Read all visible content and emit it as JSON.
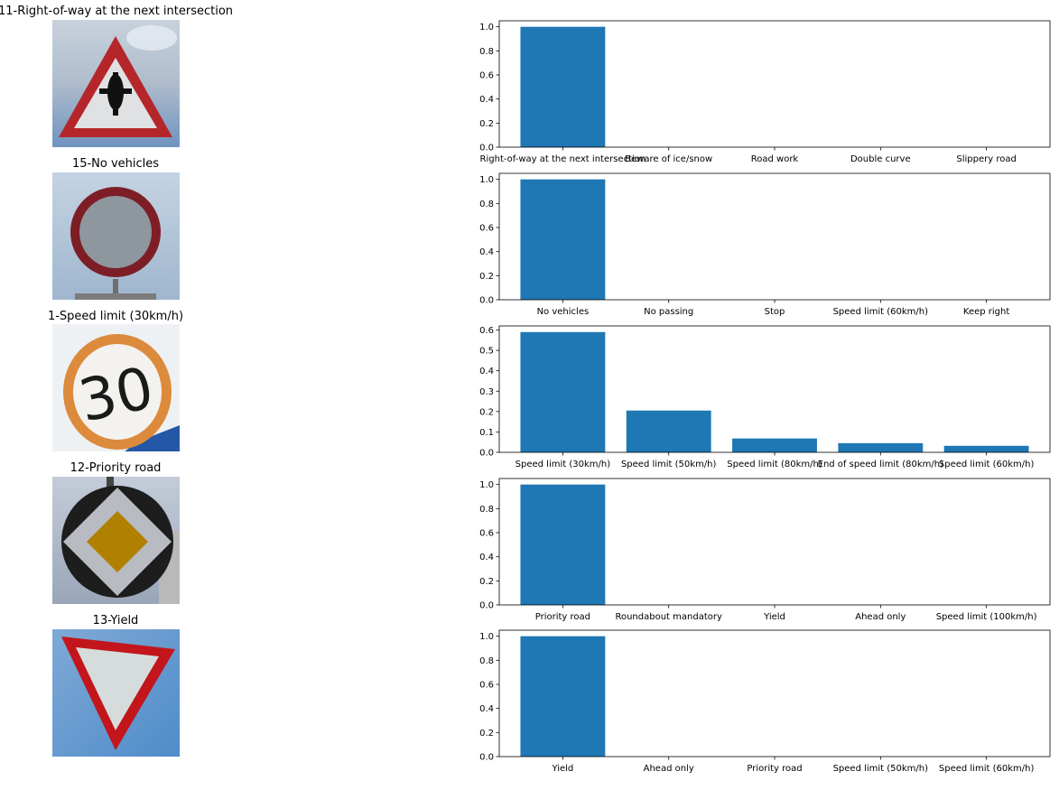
{
  "colors": {
    "bar": "#1f77b4",
    "axis": "#000000"
  },
  "rows": [
    {
      "title": "11-Right-of-way at the next intersection",
      "sign_icon": "right-of-way-triangle-sign-icon",
      "chart_data": {
        "type": "bar",
        "categories": [
          "Right-of-way at the next intersection",
          "Beware of ice/snow",
          "Road work",
          "Double curve",
          "Slippery road"
        ],
        "values": [
          1.0,
          0.0,
          0.0,
          0.0,
          0.0
        ],
        "ylim": [
          0,
          1.05
        ],
        "yticks": [
          "0.0",
          "0.2",
          "0.4",
          "0.6",
          "0.8",
          "1.0"
        ],
        "grid": false
      }
    },
    {
      "title": "15-No vehicles",
      "sign_icon": "no-vehicles-circle-sign-icon",
      "chart_data": {
        "type": "bar",
        "categories": [
          "No vehicles",
          "No passing",
          "Stop",
          "Speed limit (60km/h)",
          "Keep right"
        ],
        "values": [
          1.0,
          0.0,
          0.0,
          0.0,
          0.0
        ],
        "ylim": [
          0,
          1.05
        ],
        "yticks": [
          "0.0",
          "0.2",
          "0.4",
          "0.6",
          "0.8",
          "1.0"
        ],
        "grid": false
      }
    },
    {
      "title": "1-Speed limit (30km/h)",
      "sign_icon": "speed-limit-30-sign-icon",
      "chart_data": {
        "type": "bar",
        "categories": [
          "Speed limit (30km/h)",
          "Speed limit (50km/h)",
          "Speed limit (80km/h)",
          "End of speed limit (80km/h)",
          "Speed limit (60km/h)"
        ],
        "values": [
          0.59,
          0.205,
          0.068,
          0.045,
          0.032
        ],
        "ylim": [
          0,
          0.62
        ],
        "yticks": [
          "0.0",
          "0.1",
          "0.2",
          "0.3",
          "0.4",
          "0.5",
          "0.6"
        ],
        "grid": false
      }
    },
    {
      "title": "12-Priority road",
      "sign_icon": "priority-road-diamond-sign-icon",
      "chart_data": {
        "type": "bar",
        "categories": [
          "Priority road",
          "Roundabout mandatory",
          "Yield",
          "Ahead only",
          "Speed limit (100km/h)"
        ],
        "values": [
          1.0,
          0.0,
          0.0,
          0.0,
          0.0
        ],
        "ylim": [
          0,
          1.05
        ],
        "yticks": [
          "0.0",
          "0.2",
          "0.4",
          "0.6",
          "0.8",
          "1.0"
        ],
        "grid": false
      }
    },
    {
      "title": "13-Yield",
      "sign_icon": "yield-inverted-triangle-sign-icon",
      "chart_data": {
        "type": "bar",
        "categories": [
          "Yield",
          "Ahead only",
          "Priority road",
          "Speed limit (50km/h)",
          "Speed limit (60km/h)"
        ],
        "values": [
          1.0,
          0.0,
          0.0,
          0.0,
          0.0
        ],
        "ylim": [
          0,
          1.05
        ],
        "yticks": [
          "0.0",
          "0.2",
          "0.4",
          "0.6",
          "0.8",
          "1.0"
        ],
        "grid": false
      }
    }
  ]
}
